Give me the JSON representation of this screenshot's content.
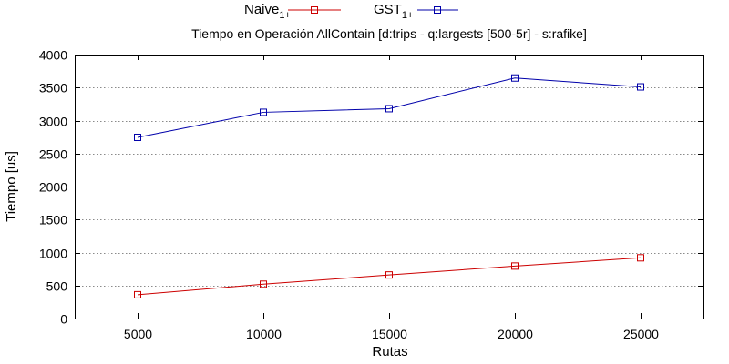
{
  "chart_data": {
    "type": "line",
    "title": "Tiempo en Operación AllContain [d:trips - q:largests [500-5r] - s:rafike]",
    "xlabel": "Rutas",
    "ylabel": "Tiempo [us]",
    "x": [
      5000,
      10000,
      15000,
      20000,
      25000
    ],
    "xlim": [
      2500,
      27500
    ],
    "ylim": [
      0,
      4000
    ],
    "yticks": [
      0,
      500,
      1000,
      1500,
      2000,
      2500,
      3000,
      3500,
      4000
    ],
    "grid": "horizontal",
    "legend_position": "top",
    "series": [
      {
        "name": "Naive",
        "name_subscript": "1+",
        "color": "#cc0000",
        "marker": "square",
        "values": [
          360,
          520,
          660,
          795,
          920
        ]
      },
      {
        "name": "GST",
        "name_subscript": "1+",
        "color": "#0000aa",
        "marker": "square",
        "values": [
          2745,
          3125,
          3180,
          3645,
          3510
        ]
      }
    ]
  }
}
